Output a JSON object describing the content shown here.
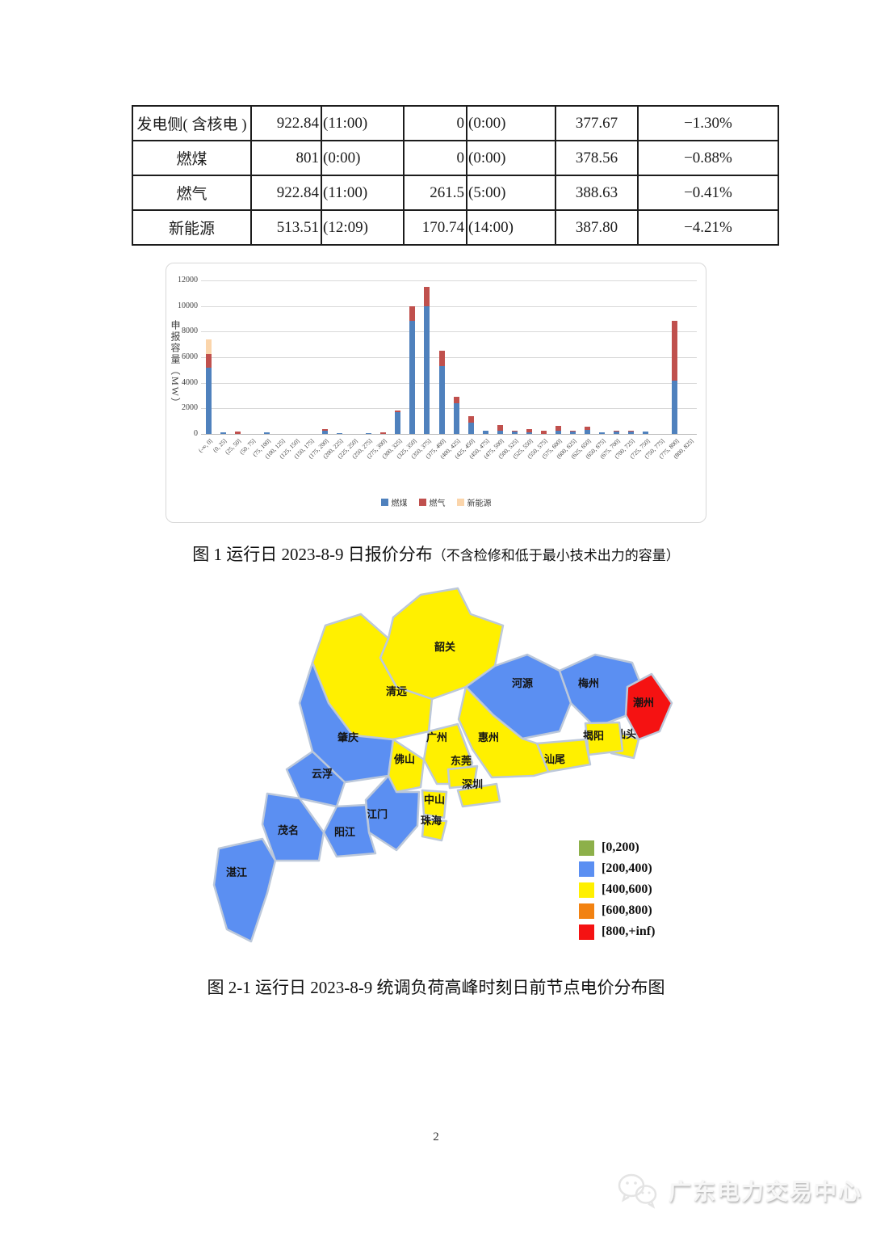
{
  "page": {
    "number": "2",
    "footer_logo": "广东电力交易中心"
  },
  "table": {
    "rows": [
      [
        "发电侧( 含核电 )",
        "922.84",
        "(11:00)",
        "0",
        "(0:00)",
        "377.67",
        "−1.30%"
      ],
      [
        "燃煤",
        "801",
        "(0:00)",
        "0",
        "(0:00)",
        "378.56",
        "−0.88%"
      ],
      [
        "燃气",
        "922.84",
        "(11:00)",
        "261.5",
        "(5:00)",
        "388.63",
        "−0.41%"
      ],
      [
        "新能源",
        "513.51",
        "(12:09)",
        "170.74",
        "(14:00)",
        "387.80",
        "−4.21%"
      ]
    ]
  },
  "chart_data": {
    "type": "bar",
    "stacked": true,
    "title": "",
    "xlabel": "",
    "ylabel": "申报容量（MW）",
    "ylim": [
      0,
      12000
    ],
    "ytick_step": 2000,
    "grid": true,
    "legend_position": "bottom",
    "categories": [
      "(-∞, 0]",
      "(0, 25]",
      "(25, 50]",
      "(50, 75]",
      "(75, 100]",
      "(100, 125]",
      "(125, 150]",
      "(150, 175]",
      "(175, 200]",
      "(200, 225]",
      "(225, 250]",
      "(250, 275]",
      "(275, 300]",
      "(300, 325]",
      "(325, 350]",
      "(350, 375]",
      "(375, 400]",
      "(400, 425]",
      "(425, 450]",
      "(450, 475]",
      "(475, 500]",
      "(500, 525]",
      "(525, 550]",
      "(550, 575]",
      "(575, 600]",
      "(600, 625]",
      "(625, 650]",
      "(650, 675]",
      "(675, 700]",
      "(700, 725]",
      "(725, 750]",
      "(750, 775]",
      "(775, 800]",
      "(800, 825]"
    ],
    "series": [
      {
        "name": "燃煤",
        "color": "#4f81bd",
        "values": [
          5200,
          100,
          0,
          0,
          100,
          0,
          0,
          0,
          250,
          80,
          0,
          80,
          0,
          1700,
          8850,
          9950,
          5280,
          2400,
          900,
          230,
          270,
          200,
          130,
          0,
          230,
          220,
          320,
          150,
          200,
          220,
          190,
          0,
          4200,
          0
        ]
      },
      {
        "name": "燃气",
        "color": "#c0504d",
        "values": [
          1080,
          0,
          200,
          0,
          0,
          0,
          0,
          0,
          150,
          0,
          0,
          0,
          100,
          150,
          1100,
          1550,
          1220,
          500,
          500,
          0,
          430,
          80,
          230,
          230,
          400,
          60,
          230,
          0,
          70,
          60,
          0,
          0,
          4650,
          0
        ]
      },
      {
        "name": "新能源",
        "color": "#fbd5ab",
        "values": [
          1120,
          0,
          0,
          0,
          0,
          0,
          0,
          0,
          0,
          0,
          0,
          0,
          0,
          0,
          0,
          0,
          0,
          0,
          0,
          0,
          0,
          0,
          0,
          0,
          0,
          0,
          0,
          0,
          0,
          0,
          0,
          0,
          0,
          0
        ]
      }
    ]
  },
  "figure1": {
    "caption_main": "图 1  运行日 2023-8-9 日报价分布",
    "caption_note": "（不含检修和低于最小技术出力的容量）"
  },
  "figure2": {
    "caption": "图 2-1  运行日 2023-8-9 统调负荷高峰时刻日前节点电价分布图",
    "map": {
      "legend": [
        {
          "label": "[0,200)",
          "color": "#8db04a"
        },
        {
          "label": "[200,400)",
          "color": "#5b8ff2"
        },
        {
          "label": "[400,600)",
          "color": "#fff000"
        },
        {
          "label": "[600,800)",
          "color": "#f28211"
        },
        {
          "label": "[800,+inf)",
          "color": "#f51212"
        }
      ],
      "cities": [
        {
          "id": "shaoguan",
          "label": "韶关",
          "bucket": "[400,600)"
        },
        {
          "id": "qingyuan",
          "label": "清远",
          "bucket": "[400,600)"
        },
        {
          "id": "heyuan",
          "label": "河源",
          "bucket": "[200,400)"
        },
        {
          "id": "meizhou",
          "label": "梅州",
          "bucket": "[200,400)"
        },
        {
          "id": "chaozhou",
          "label": "潮州",
          "bucket": "[800,+inf)"
        },
        {
          "id": "shantou",
          "label": "汕头",
          "bucket": "[400,600)"
        },
        {
          "id": "jieyang",
          "label": "揭阳",
          "bucket": "[400,600)"
        },
        {
          "id": "shanwei",
          "label": "汕尾",
          "bucket": "[400,600)"
        },
        {
          "id": "huizhou",
          "label": "惠州",
          "bucket": "[400,600)"
        },
        {
          "id": "guangzhou",
          "label": "广州",
          "bucket": "[400,600)"
        },
        {
          "id": "dongguan",
          "label": "东莞",
          "bucket": "[400,600)"
        },
        {
          "id": "shenzhen",
          "label": "深圳",
          "bucket": "[400,600)"
        },
        {
          "id": "foshan",
          "label": "佛山",
          "bucket": "[400,600)"
        },
        {
          "id": "zhongshan",
          "label": "中山",
          "bucket": "[400,600)"
        },
        {
          "id": "zhuhai",
          "label": "珠海",
          "bucket": "[400,600)"
        },
        {
          "id": "zhaoqing",
          "label": "肇庆",
          "bucket": "[200,400)"
        },
        {
          "id": "yunfu",
          "label": "云浮",
          "bucket": "[200,400)"
        },
        {
          "id": "jiangmen",
          "label": "江门",
          "bucket": "[200,400)"
        },
        {
          "id": "yangjiang",
          "label": "阳江",
          "bucket": "[200,400)"
        },
        {
          "id": "maoming",
          "label": "茂名",
          "bucket": "[200,400)"
        },
        {
          "id": "zhanjiang",
          "label": "湛江",
          "bucket": "[200,400)"
        }
      ]
    }
  }
}
